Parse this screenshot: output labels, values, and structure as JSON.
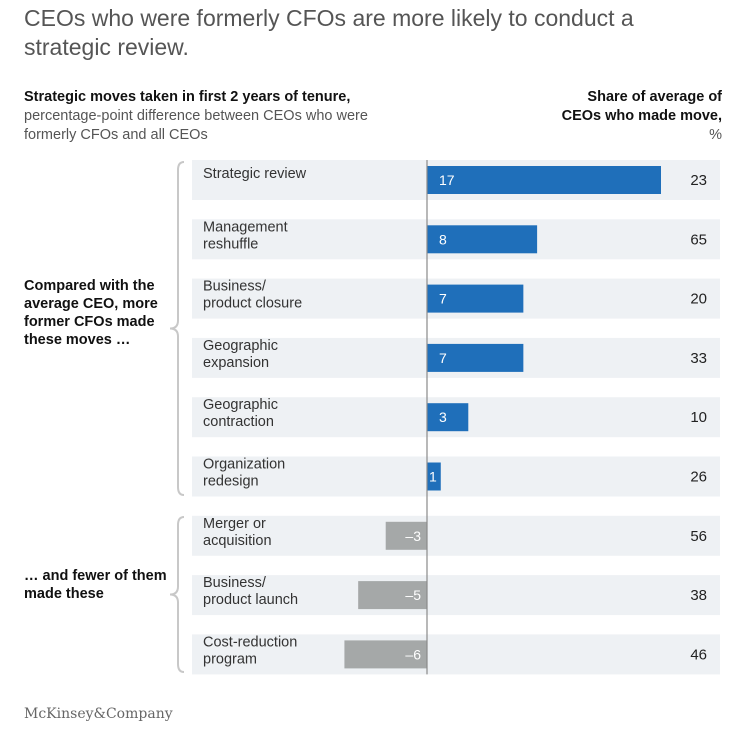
{
  "title": "CEOs who were formerly CFOs are more likely to conduct a strategic review.",
  "subtitle_bold": "Strategic moves taken in first 2 years of tenure,",
  "subtitle_light": "percentage-point difference between CEOs who were formerly CFOs and all CEOs",
  "share_header_main": "Share of average of CEOs who made move,",
  "share_header_unit": "%",
  "group_labels": {
    "more": "Compared with the average CEO, more former CFOs made these moves …",
    "fewer": "… and fewer of them made these"
  },
  "logo": "McKinsey&Company",
  "colors": {
    "positive": "#1f6fba",
    "negative": "#a5a8a8",
    "row_bg": "#eef1f4",
    "axis": "#8a8a8a",
    "bracket": "#c8c8c8"
  },
  "chart_data": {
    "type": "bar",
    "orientation": "horizontal",
    "categories": [
      "Strategic review",
      "Management reshuffle",
      "Business/ product closure",
      "Geographic expansion",
      "Geographic contraction",
      "Organization redesign",
      "Merger or acquisition",
      "Business/ product launch",
      "Cost-reduction program"
    ],
    "category_lines": [
      [
        "Strategic review"
      ],
      [
        "Management",
        "reshuffle"
      ],
      [
        "Business/",
        "product closure"
      ],
      [
        "Geographic",
        "expansion"
      ],
      [
        "Geographic",
        "contraction"
      ],
      [
        "Organization",
        "redesign"
      ],
      [
        "Merger or",
        "acquisition"
      ],
      [
        "Business/",
        "product launch"
      ],
      [
        "Cost-reduction",
        "program"
      ]
    ],
    "values": [
      17,
      8,
      7,
      7,
      3,
      1,
      -3,
      -5,
      -6
    ],
    "value_labels": [
      "17",
      "8",
      "7",
      "7",
      "3",
      "1",
      "–3",
      "–5",
      "–6"
    ],
    "share_of_average": [
      23,
      65,
      20,
      33,
      10,
      26,
      56,
      38,
      46
    ],
    "xlim": [
      -7,
      17
    ]
  }
}
